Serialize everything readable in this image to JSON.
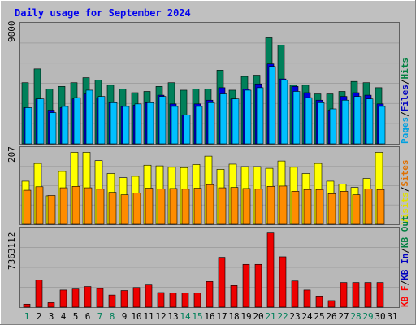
{
  "chart_data": [
    {
      "type": "bar",
      "title": "Daily usage for September 2024",
      "ymax_label": "9000",
      "legend": [
        {
          "label": "Pages",
          "color": "#00a0e0"
        },
        {
          "label": "Files",
          "color": "#0000c0"
        },
        {
          "label": "Hits",
          "color": "#008040"
        }
      ],
      "categories": [
        "1",
        "2",
        "3",
        "4",
        "5",
        "6",
        "7",
        "8",
        "9",
        "10",
        "11",
        "12",
        "13",
        "14",
        "15",
        "16",
        "17",
        "18",
        "19",
        "20",
        "21",
        "22",
        "23",
        "24",
        "25",
        "26",
        "27",
        "28",
        "29",
        "30",
        "31"
      ],
      "weekend_days": [
        "1",
        "7",
        "8",
        "14",
        "15",
        "21",
        "22",
        "28",
        "29"
      ],
      "ylim": [
        0,
        9700
      ],
      "series": [
        {
          "name": "Hits",
          "color": "#00805a",
          "values": [
            4900,
            6000,
            4400,
            4600,
            4900,
            5300,
            5100,
            4700,
            4400,
            4100,
            4200,
            4600,
            4900,
            4300,
            4400,
            4400,
            5900,
            4300,
            5400,
            5500,
            8500,
            7900,
            4700,
            4700,
            4000,
            4000,
            4200,
            5000,
            4900,
            4500,
            0
          ]
        },
        {
          "name": "Files",
          "color": "#0000dd",
          "values": [
            2900,
            3600,
            2700,
            2900,
            3600,
            4000,
            3700,
            3300,
            3000,
            3100,
            3300,
            3900,
            3200,
            2300,
            3200,
            3500,
            4500,
            3600,
            4400,
            4800,
            6400,
            5200,
            4600,
            4100,
            3500,
            2700,
            3800,
            4100,
            3900,
            3200,
            0
          ]
        },
        {
          "name": "Pages",
          "color": "#00c0ff",
          "values": [
            2900,
            3600,
            2500,
            3000,
            3700,
            4300,
            3800,
            3300,
            3000,
            3200,
            3300,
            3800,
            3000,
            2300,
            3000,
            3300,
            4000,
            3600,
            4300,
            4500,
            6200,
            5100,
            4200,
            3700,
            3300,
            2800,
            3500,
            3800,
            3600,
            3000,
            0
          ]
        }
      ]
    },
    {
      "type": "bar",
      "ymax_label": "207",
      "legend": [
        {
          "label": "Visits",
          "color": "#e0e000"
        },
        {
          "label": "Sites",
          "color": "#e07000"
        }
      ],
      "categories": [
        "1",
        "2",
        "3",
        "4",
        "5",
        "6",
        "7",
        "8",
        "9",
        "10",
        "11",
        "12",
        "13",
        "14",
        "15",
        "16",
        "17",
        "18",
        "19",
        "20",
        "21",
        "22",
        "23",
        "24",
        "25",
        "26",
        "27",
        "28",
        "29",
        "30",
        "31"
      ],
      "ylim": [
        0,
        222
      ],
      "series": [
        {
          "name": "Visits",
          "color": "#ffff00",
          "values": [
            124,
            175,
            82,
            152,
            207,
            207,
            183,
            146,
            134,
            138,
            170,
            168,
            164,
            163,
            172,
            196,
            158,
            173,
            166,
            166,
            161,
            182,
            164,
            146,
            175,
            124,
            116,
            106,
            132,
            207,
            0
          ]
        },
        {
          "name": "Sites",
          "color": "#ff8c00",
          "values": [
            98,
            108,
            83,
            105,
            109,
            105,
            101,
            92,
            85,
            90,
            104,
            102,
            103,
            101,
            104,
            114,
            105,
            106,
            103,
            101,
            109,
            110,
            95,
            100,
            100,
            88,
            95,
            85,
            102,
            100,
            0
          ]
        }
      ]
    },
    {
      "type": "bar",
      "ymax_label": "7363112",
      "legend": [
        {
          "label": "KB F",
          "color": "#ff0000"
        },
        {
          "label": "KB In",
          "color": "#0000c0"
        },
        {
          "label": "KB Out",
          "color": "#008040"
        }
      ],
      "categories": [
        "1",
        "2",
        "3",
        "4",
        "5",
        "6",
        "7",
        "8",
        "9",
        "10",
        "11",
        "12",
        "13",
        "14",
        "15",
        "16",
        "17",
        "18",
        "19",
        "20",
        "21",
        "22",
        "23",
        "24",
        "25",
        "26",
        "27",
        "28",
        "29",
        "30",
        "31"
      ],
      "ylim": [
        0,
        7900000
      ],
      "series": [
        {
          "name": "KB F",
          "color": "#ee0000",
          "values": [
            300000,
            2700000,
            450000,
            1700000,
            1800000,
            2050000,
            1850000,
            1200000,
            1650000,
            1950000,
            2200000,
            1450000,
            1400000,
            1400000,
            1400000,
            2550000,
            4950000,
            2150000,
            4250000,
            4250000,
            7363112,
            5000000,
            2600000,
            1700000,
            1100000,
            650000,
            2450000,
            2450000,
            2450000,
            2450000,
            0
          ]
        }
      ]
    }
  ]
}
